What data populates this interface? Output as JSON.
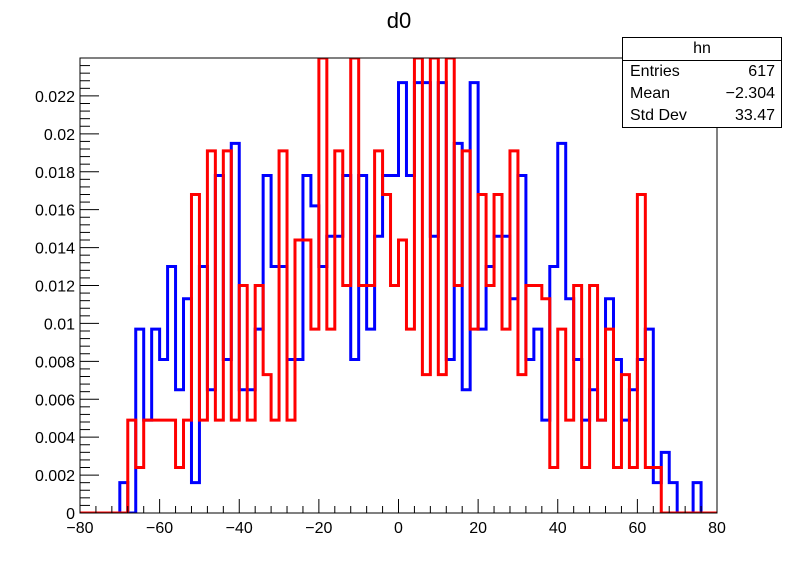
{
  "chart_data": {
    "type": "histogram",
    "title": "d0",
    "xlim": [
      -80,
      80
    ],
    "ylim": [
      0,
      0.024
    ],
    "x_ticks": [
      "−80",
      "−60",
      "−40",
      "−20",
      "0",
      "20",
      "40",
      "60",
      "80"
    ],
    "y_ticks": [
      "0",
      "0.002",
      "0.004",
      "0.006",
      "0.008",
      "0.01",
      "0.012",
      "0.014",
      "0.016",
      "0.018",
      "0.02",
      "0.022"
    ],
    "bin_width": 2,
    "x_start": -80,
    "series": [
      {
        "name": "",
        "color": "#0000ff",
        "values": [
          0,
          0,
          0,
          0,
          0,
          0.0016,
          0,
          0.0097,
          0.0049,
          0.0097,
          0.0081,
          0.013,
          0.0065,
          0.0113,
          0.0016,
          0.013,
          0.0065,
          0.0178,
          0.0081,
          0.0195,
          0.0065,
          0.0065,
          0.0097,
          0.0178,
          0.013,
          0.013,
          0.0081,
          0.0081,
          0.0178,
          0.0162,
          0.013,
          0.0146,
          0.0146,
          0.0178,
          0.0081,
          0.0178,
          0.0097,
          0.0146,
          0.0178,
          0.0178,
          0.0227,
          0.0178,
          0.0227,
          0.0227,
          0.0146,
          0.0227,
          0.0081,
          0.0195,
          0.0065,
          0.0227,
          0.0097,
          0.013,
          0.0146,
          0.0146,
          0.0113,
          0.0178,
          0.0081,
          0.0097,
          0.0049,
          0.013,
          0.0195,
          0.0113,
          0.0081,
          0.0049,
          0.0065,
          0.0049,
          0.0113,
          0.0081,
          0.0049,
          0.0065,
          0.0081,
          0.0097,
          0.0016,
          0.0032,
          0.0016,
          0,
          0,
          0.0016,
          0,
          0
        ],
        "display_values": []
      },
      {
        "name": "",
        "color": "#ff0000",
        "values": [
          0,
          0,
          0,
          0,
          0,
          0,
          0.0049,
          0.0024,
          0.0049,
          0.0049,
          0.0049,
          0.0049,
          0.0024,
          0.0049,
          0.0168,
          0.0049,
          0.0191,
          0.0049,
          0.0191,
          0.0049,
          0.012,
          0.0049,
          0.012,
          0.0073,
          0.0049,
          0.0191,
          0.0049,
          0.0144,
          0.0144,
          0.0097,
          0.024,
          0.0097,
          0.0191,
          0.012,
          0.024,
          0.012,
          0.012,
          0.0191,
          0.0168,
          0.012,
          0.0144,
          0.0097,
          0.024,
          0.0073,
          0.024,
          0.0073,
          0.024,
          0.012,
          0.0191,
          0.0097,
          0.0168,
          0.012,
          0.0168,
          0.0097,
          0.0191,
          0.0073,
          0.012,
          0.012,
          0.0113,
          0.0024,
          0.0097,
          0.0049,
          0.012,
          0.0024,
          0.012,
          0.0049,
          0.0097,
          0.0024,
          0.0073,
          0.0024,
          0.0168,
          0.0024,
          0.0024,
          0,
          0,
          0,
          0,
          0,
          0,
          0
        ],
        "display_values": []
      }
    ]
  },
  "stats_box": {
    "title": "hn",
    "rows": [
      {
        "label": "Entries",
        "value": "617"
      },
      {
        "label": "Mean",
        "value": "−2.304"
      },
      {
        "label": "Std Dev",
        "value": "33.47"
      }
    ]
  }
}
